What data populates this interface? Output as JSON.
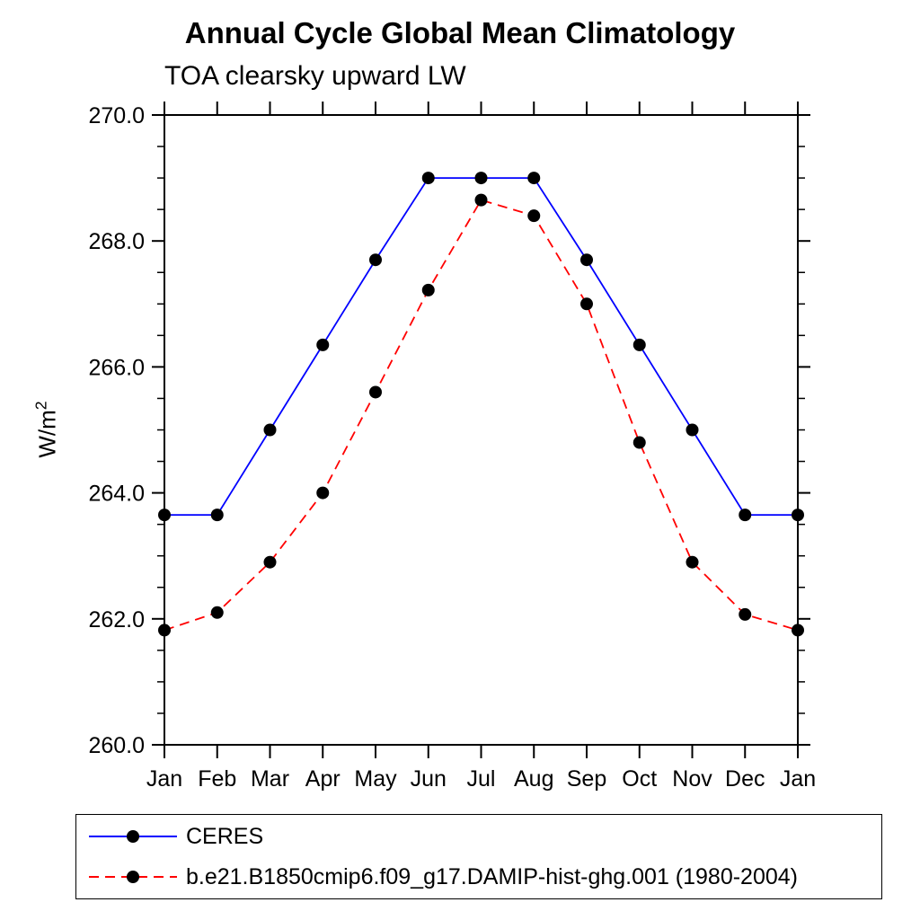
{
  "chart_data": {
    "type": "line",
    "title": "Annual Cycle Global Mean Climatology",
    "subtitle": "TOA clearsky upward LW",
    "xlabel": "",
    "ylabel": "W/m",
    "ylabel_sup": "2",
    "categories": [
      "Jan",
      "Feb",
      "Mar",
      "Apr",
      "May",
      "Jun",
      "Jul",
      "Aug",
      "Sep",
      "Oct",
      "Nov",
      "Dec",
      "Jan"
    ],
    "series": [
      {
        "name": "CERES",
        "color": "#0000ff",
        "line_style": "solid",
        "marker": "filled-circle",
        "marker_color": "#000000",
        "values": [
          263.65,
          263.65,
          265.0,
          266.35,
          267.7,
          269.0,
          269.0,
          269.0,
          267.7,
          266.35,
          265.0,
          263.65,
          263.65
        ]
      },
      {
        "name": "b.e21.B1850cmip6.f09_g17.DAMIP-hist-ghg.001 (1980-2004)",
        "color": "#ff0000",
        "line_style": "dashed",
        "marker": "filled-circle",
        "marker_color": "#000000",
        "values": [
          261.82,
          262.1,
          262.9,
          264.0,
          265.6,
          267.22,
          268.65,
          268.4,
          267.0,
          264.8,
          262.9,
          262.07,
          261.82
        ]
      }
    ],
    "ylim": [
      260.0,
      270.0
    ],
    "ytick_major_values": [
      260.0,
      262.0,
      264.0,
      266.0,
      268.0,
      270.0
    ],
    "ytick_major_labels": [
      "260.0",
      "262.0",
      "264.0",
      "266.0",
      "268.0",
      "270.0"
    ],
    "ytick_minor_step": 0.5,
    "grid": false,
    "legend_position": "bottom-left-box",
    "axis_color": "#000000"
  }
}
